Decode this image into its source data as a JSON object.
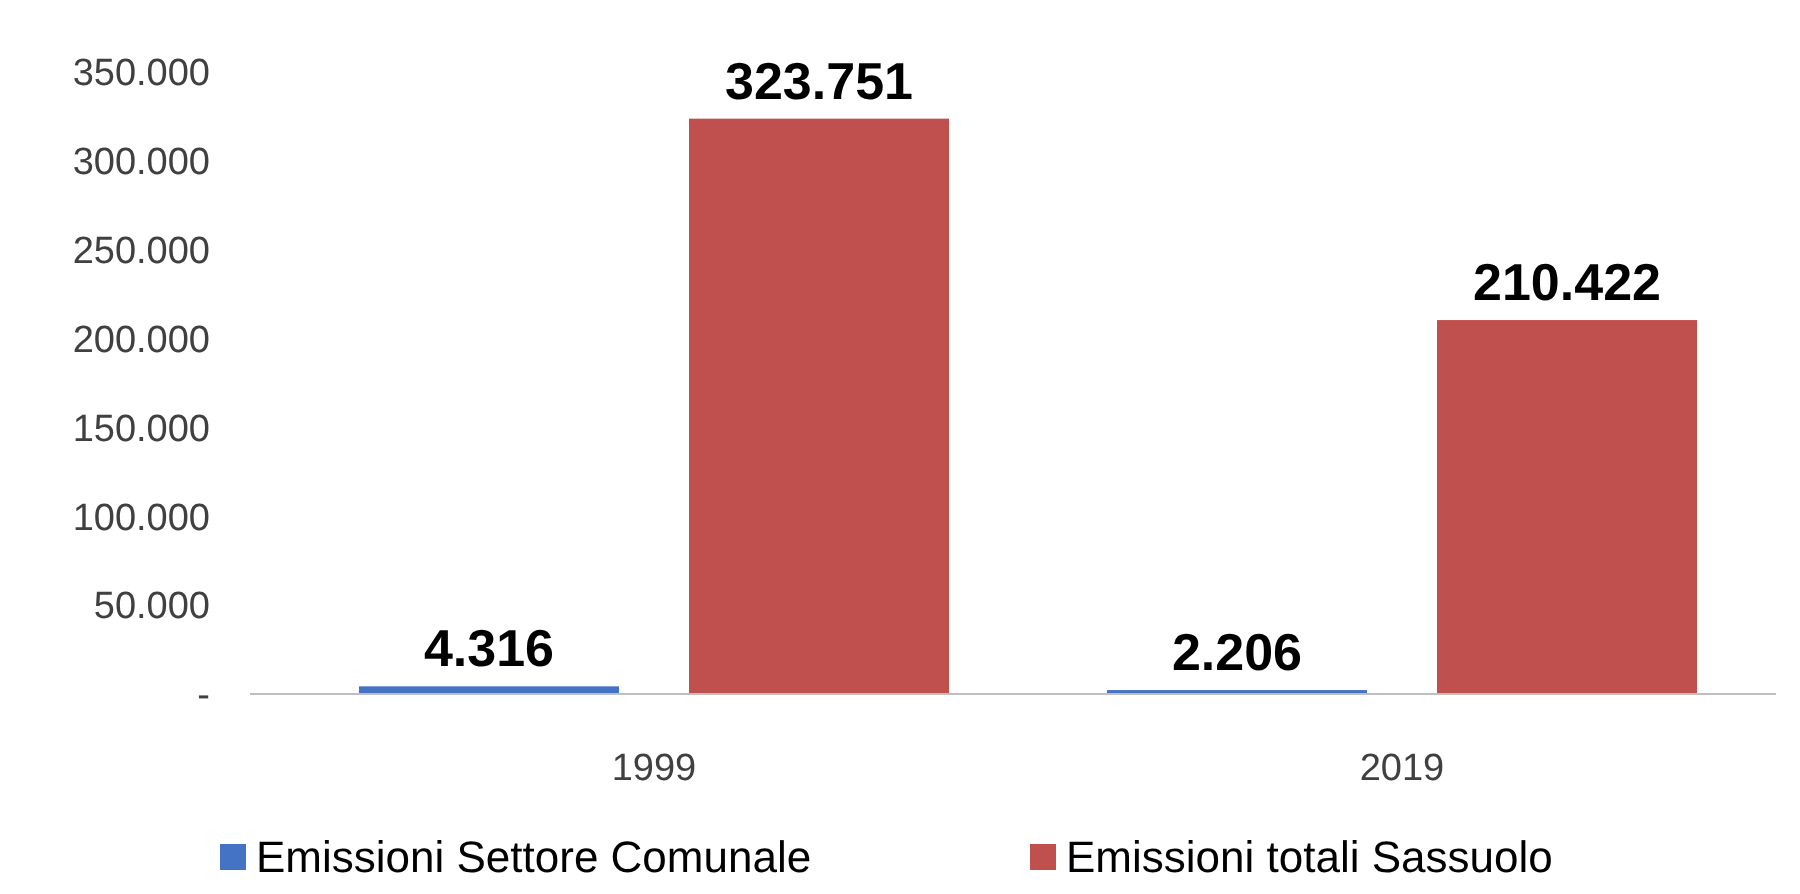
{
  "chart_data": {
    "type": "bar",
    "categories": [
      "1999",
      "2019"
    ],
    "series": [
      {
        "name": "Emissioni Settore Comunale",
        "color": "#4472c4",
        "values": [
          4316,
          2206
        ],
        "value_labels": [
          "4.316",
          "2.206"
        ]
      },
      {
        "name": "Emissioni totali Sassuolo",
        "color": "#c0504d",
        "values": [
          323751,
          210422
        ],
        "value_labels": [
          "323.751",
          "210.422"
        ]
      }
    ],
    "ylim": [
      0,
      350000
    ],
    "yticks": [
      {
        "value": 0,
        "label": "-"
      },
      {
        "value": 50000,
        "label": "50.000"
      },
      {
        "value": 100000,
        "label": "100.000"
      },
      {
        "value": 150000,
        "label": "150.000"
      },
      {
        "value": 200000,
        "label": "200.000"
      },
      {
        "value": 250000,
        "label": "250.000"
      },
      {
        "value": 300000,
        "label": "300.000"
      },
      {
        "value": 350000,
        "label": "350.000"
      }
    ],
    "grid": false,
    "legend": "bottom"
  }
}
